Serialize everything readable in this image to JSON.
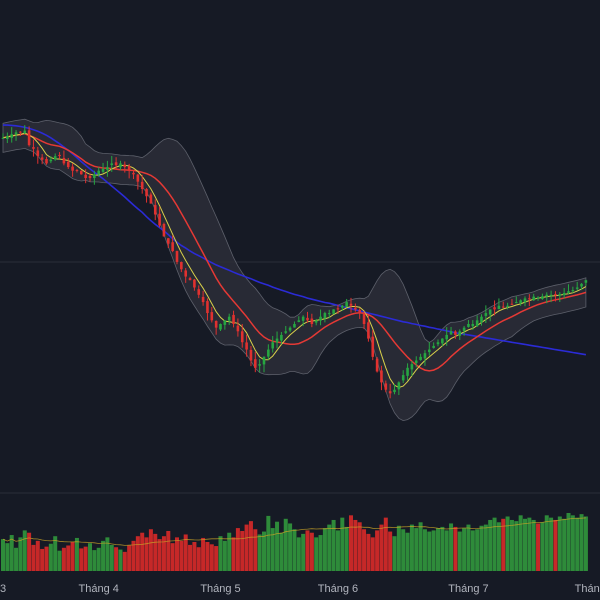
{
  "theme": {
    "background": "#161a25",
    "grid": "#2a2e39",
    "axis_text": "#b2b5be",
    "up": "#26a641",
    "down": "#e0312f",
    "vol_up": "#2e8b3a",
    "vol_down": "#c62828",
    "band_fill": "#2b2e38",
    "band_edge": "#5d606b",
    "ma_fast": "#d8d04a",
    "ma_mid": "#e53935",
    "ma_long": "#2b2bd6",
    "vol_ma": "#c9a227"
  },
  "chart_data": {
    "type": "candlestick",
    "title": "",
    "x_axis": {
      "labels": [
        {
          "text": "3",
          "bar": 0
        },
        {
          "text": "Tháng 4",
          "bar": 22
        },
        {
          "text": "Tháng 5",
          "bar": 50
        },
        {
          "text": "Tháng 6",
          "bar": 77
        },
        {
          "text": "Tháng 7",
          "bar": 107
        },
        {
          "text": "Tháng",
          "bar": 135
        }
      ]
    },
    "price_range": [
      0,
      100
    ],
    "overlays": [
      "bollinger_bands",
      "ma_fast",
      "ma_mid",
      "ma_long"
    ],
    "close": [
      91,
      91.5,
      92,
      92.5,
      92.6,
      93,
      89,
      88,
      86,
      85,
      84,
      85,
      86,
      86,
      84,
      83,
      82,
      82,
      81,
      80,
      80,
      81,
      82,
      82.5,
      83,
      84,
      83.5,
      84,
      83,
      82,
      81,
      79,
      77,
      75,
      73,
      70,
      67,
      64,
      62,
      60,
      57,
      55,
      53,
      52,
      50,
      48,
      46,
      43,
      41,
      39,
      40,
      41,
      42,
      40,
      38,
      35,
      33,
      30,
      28,
      29,
      31,
      33,
      35,
      36,
      37,
      38,
      39,
      40,
      41,
      42,
      41,
      40,
      41,
      42,
      43,
      43,
      44,
      44,
      45,
      46,
      45,
      44,
      43,
      40,
      36,
      31,
      27,
      24,
      22,
      21,
      22,
      24,
      26,
      28,
      29,
      30,
      31,
      32,
      33,
      34,
      35,
      36,
      37,
      38,
      37,
      38,
      39,
      40,
      40,
      41,
      42,
      43,
      44,
      44,
      45,
      44.5,
      45,
      45.5,
      46,
      46.5,
      47,
      47,
      47.5,
      47.3,
      47.6,
      48,
      48,
      47.8,
      48.2,
      48.5,
      49,
      49.3,
      50,
      51,
      52
    ],
    "ma_long": [
      94.5,
      94.5,
      94.4,
      94.3,
      94.1,
      93.9,
      93.6,
      93.2,
      92.8,
      92.3,
      91.7,
      91,
      90.2,
      89.4,
      88.5,
      87.6,
      86.6,
      85.6,
      84.5,
      83.5,
      82.5,
      81.6,
      80.7,
      79.8,
      78.8,
      77.8,
      76.8,
      75.8,
      74.8,
      73.7,
      72.6,
      71.6,
      70.6,
      69.4,
      68.3,
      67.3,
      66.4,
      65.5,
      64.5,
      63.4,
      62.4,
      61.5,
      60.8,
      60,
      59.3,
      58.7,
      58.1,
      57.4,
      56.8,
      56.2,
      55.7,
      55.2,
      54.7,
      54.2,
      53.7,
      53.3,
      52.8,
      52.4,
      51.9,
      51.4,
      51,
      50.6,
      50.1,
      49.7,
      49.3,
      48.9,
      48.5,
      48.1,
      47.8,
      47.5,
      47.1,
      46.8,
      46.5,
      46.2,
      45.9,
      45.7,
      45.4,
      45.1,
      44.8,
      44.5,
      44.2,
      43.9,
      43.6,
      43.3,
      43,
      42.7,
      42.4,
      42.1,
      41.8,
      41.5,
      41.2,
      40.9,
      40.6,
      40.4,
      40.1,
      39.9,
      39.6,
      39.4,
      39.1,
      38.9,
      38.6,
      38.4,
      38.1,
      37.9,
      37.6,
      37.4,
      37.2,
      37,
      36.8,
      36.6,
      36.4,
      36.2,
      36,
      35.8,
      35.6,
      35.4,
      35.2,
      35,
      34.8,
      34.6,
      34.4,
      34.2,
      34,
      33.8,
      33.6,
      33.4,
      33.2,
      33,
      32.8,
      32.6,
      32.4,
      32.2,
      32,
      31.8,
      31.6
    ],
    "volume": [
      55,
      48,
      62,
      40,
      58,
      70,
      66,
      45,
      52,
      38,
      42,
      47,
      60,
      35,
      40,
      44,
      50,
      57,
      39,
      42,
      48,
      36,
      40,
      52,
      58,
      45,
      41,
      37,
      33,
      44,
      52,
      60,
      66,
      58,
      72,
      64,
      55,
      60,
      69,
      48,
      58,
      52,
      63,
      45,
      50,
      41,
      57,
      50,
      46,
      43,
      60,
      52,
      66,
      58,
      74,
      69,
      80,
      86,
      72,
      63,
      68,
      95,
      74,
      85,
      66,
      90,
      82,
      72,
      58,
      64,
      70,
      66,
      58,
      62,
      74,
      80,
      88,
      70,
      92,
      76,
      96,
      88,
      84,
      72,
      64,
      58,
      70,
      80,
      92,
      68,
      60,
      78,
      72,
      66,
      80,
      74,
      84,
      72,
      68,
      70,
      74,
      76,
      70,
      82,
      76,
      68,
      74,
      80,
      70,
      72,
      78,
      80,
      88,
      92,
      84,
      90,
      94,
      88,
      86,
      96,
      90,
      92,
      88,
      82,
      84,
      96,
      92,
      88,
      94,
      90,
      100,
      96,
      92,
      98,
      94
    ]
  }
}
